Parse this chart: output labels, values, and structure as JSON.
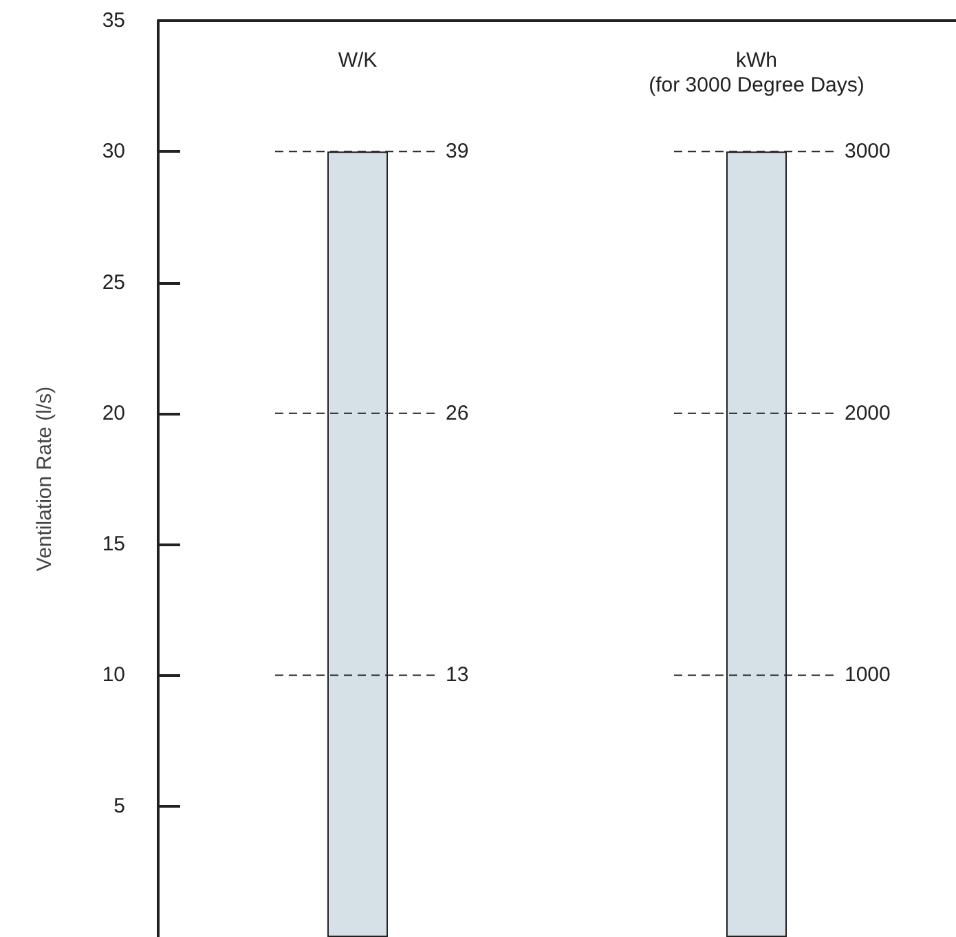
{
  "chart_data": {
    "type": "bar",
    "categories": [
      "W/K",
      "kWh\n(for 3000 Degree Days)"
    ],
    "values": [
      30,
      30
    ],
    "color": "#d6e0e7",
    "ylabel": "Ventilation Rate (l/s)",
    "ylim": [
      0,
      35
    ],
    "yticks": [
      5,
      10,
      15,
      20,
      25,
      30,
      35
    ],
    "grid": false,
    "ref_lines": [
      {
        "axis": "y",
        "value": 10,
        "line_style": "dashed"
      },
      {
        "axis": "y",
        "value": 20,
        "line_style": "dashed"
      },
      {
        "axis": "y",
        "value": 30,
        "line_style": "dashed"
      }
    ],
    "annotations": [
      "13",
      "26",
      "39",
      "1000",
      "2000",
      "3000"
    ]
  }
}
